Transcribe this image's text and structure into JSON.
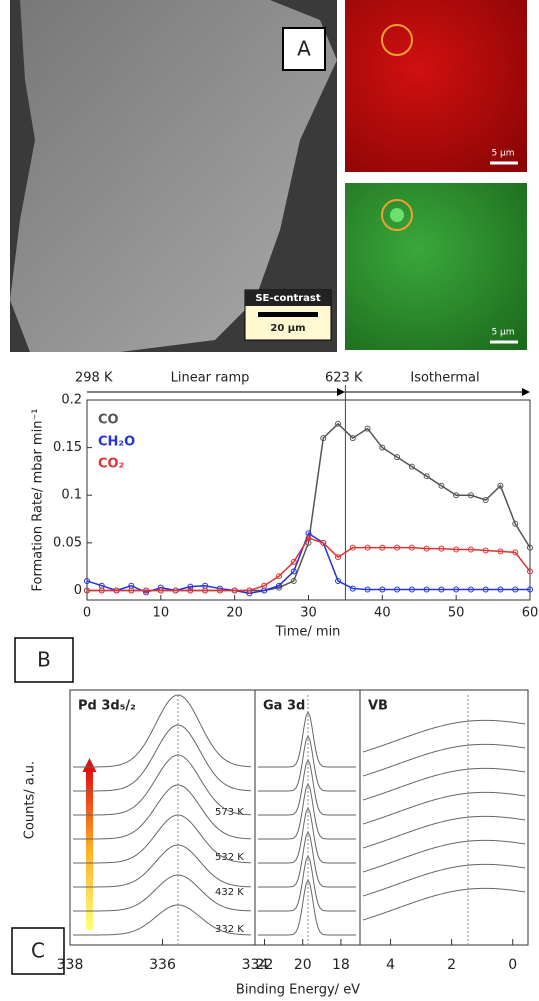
{
  "panel_a": {
    "label": "A",
    "se_contrast": "SE-contrast",
    "scale_sem": "20 µm",
    "scale_red": "5 µm",
    "scale_green": "5 µm"
  },
  "chart_data": [
    {
      "type": "line",
      "label": "B",
      "x_label": "Time/ min",
      "y_label": "Formation Rate/ mbar min⁻¹",
      "annotations": [
        "298 K",
        "Linear ramp",
        "623 K",
        "Isothermal"
      ],
      "x": [
        0,
        2,
        4,
        6,
        8,
        10,
        12,
        14,
        16,
        18,
        20,
        22,
        24,
        26,
        28,
        30,
        32,
        34,
        36,
        38,
        40,
        42,
        44,
        46,
        48,
        50,
        52,
        54,
        56,
        58,
        60
      ],
      "series": [
        {
          "name": "CO",
          "color": "#555555",
          "values": [
            0,
            0,
            0,
            0,
            0,
            0,
            0,
            0,
            0,
            0,
            0,
            0,
            0,
            0.003,
            0.01,
            0.05,
            0.16,
            0.175,
            0.16,
            0.17,
            0.15,
            0.14,
            0.13,
            0.12,
            0.11,
            0.1,
            0.1,
            0.095,
            0.11,
            0.07,
            0.045
          ]
        },
        {
          "name": "CH₂O",
          "color": "#2233dd",
          "values": [
            0.01,
            0.005,
            0,
            0.005,
            -0.002,
            0.003,
            0,
            0.004,
            0.005,
            0.002,
            0,
            -0.003,
            0,
            0.005,
            0.02,
            0.06,
            0.05,
            0.01,
            0.002,
            0.001,
            0.001,
            0.001,
            0.001,
            0.001,
            0.001,
            0.001,
            0.001,
            0.001,
            0.001,
            0.001,
            0.001
          ]
        },
        {
          "name": "CO₂",
          "color": "#dd3333",
          "values": [
            0,
            0,
            0,
            0,
            0,
            0,
            0,
            0,
            0,
            0,
            0,
            0,
            0.005,
            0.015,
            0.03,
            0.055,
            0.05,
            0.035,
            0.045,
            0.045,
            0.045,
            0.045,
            0.045,
            0.044,
            0.044,
            0.043,
            0.043,
            0.042,
            0.041,
            0.04,
            0.02
          ]
        }
      ],
      "xlim": [
        0,
        60
      ],
      "xticks": [
        0,
        10,
        20,
        30,
        40,
        50,
        60
      ],
      "ylim": [
        -0.01,
        0.2
      ],
      "yticks": [
        0,
        0.05,
        0.1,
        0.15,
        0.2
      ]
    },
    {
      "type": "spectra",
      "label": "C",
      "y_label": "Counts/ a.u.",
      "x_label": "Binding Energy/ eV",
      "temperatures": [
        "573 K",
        "532 K",
        "432 K",
        "332 K"
      ],
      "panels": [
        {
          "title": "Pd 3d₅/₂",
          "xlim": [
            338,
            334
          ],
          "xticks": [
            338,
            336,
            334
          ]
        },
        {
          "title": "Ga 3d",
          "xlim": [
            22.5,
            17
          ],
          "xticks": [
            22,
            20,
            18
          ]
        },
        {
          "title": "VB",
          "xlim": [
            5,
            -0.5
          ],
          "xticks": [
            4,
            2,
            0
          ]
        }
      ]
    }
  ]
}
